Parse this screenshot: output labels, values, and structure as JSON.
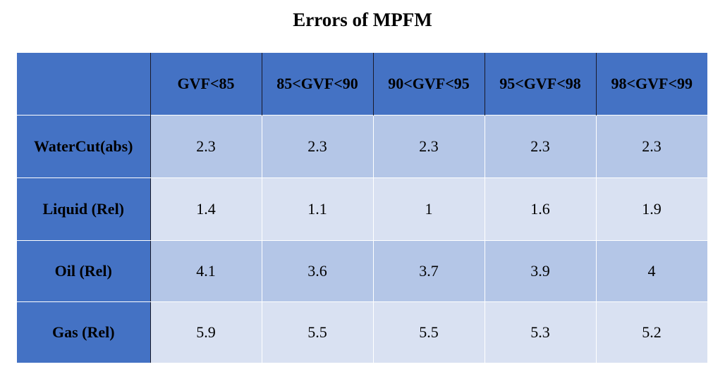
{
  "title": "Errors of MPFM",
  "columns": [
    "",
    "GVF<85",
    "85<GVF<90",
    "90<GVF<95",
    "95<GVF<98",
    "98<GVF<99"
  ],
  "rows": [
    {
      "label": "WaterCut(abs)",
      "values": [
        "2.3",
        "2.3",
        "2.3",
        "2.3",
        "2.3"
      ]
    },
    {
      "label": "Liquid (Rel)",
      "values": [
        "1.4",
        "1.1",
        "1",
        "1.6",
        "1.9"
      ]
    },
    {
      "label": "Oil (Rel)",
      "values": [
        "4.1",
        "3.6",
        "3.7",
        "3.9",
        "4"
      ]
    },
    {
      "label": "Gas (Rel)",
      "values": [
        "5.9",
        "5.5",
        "5.5",
        "5.3",
        "5.2"
      ]
    }
  ],
  "colors": {
    "header_bg": "#4472c4",
    "band_dark": "#b4c6e7",
    "band_light": "#d9e1f2"
  }
}
